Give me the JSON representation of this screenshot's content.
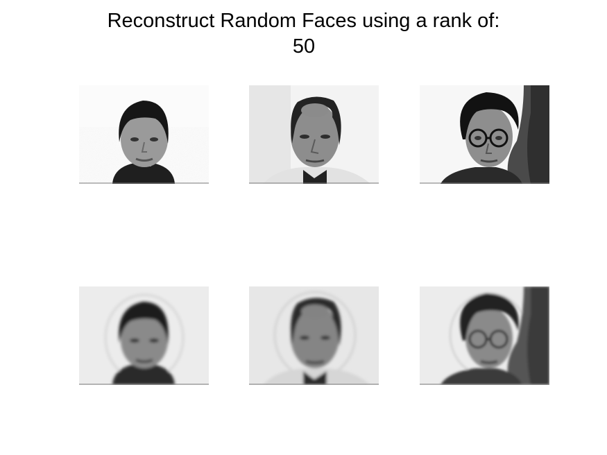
{
  "figure": {
    "title_line_1": "Reconstruct Random Faces using a rank of:",
    "title_line_2": "50",
    "background_color": "#ffffff",
    "title_color": "#000000"
  },
  "rows": [
    {
      "row_name": "original-faces",
      "panels": [
        {
          "name": "face-1",
          "background": "light",
          "hair": "dark",
          "glasses": false,
          "shadow": false
        },
        {
          "name": "face-2",
          "background": "light",
          "hair": "balding",
          "glasses": false,
          "shadow": false
        },
        {
          "name": "face-3",
          "background": "light",
          "hair": "dark",
          "glasses": true,
          "shadow": true
        }
      ]
    },
    {
      "row_name": "reconstructed-faces",
      "panels": [
        {
          "name": "face-1-reconstructed",
          "background": "light-gray",
          "hair": "dark",
          "glasses": false,
          "shadow": false,
          "blurred": true
        },
        {
          "name": "face-2-reconstructed",
          "background": "light-gray",
          "hair": "balding",
          "glasses": false,
          "shadow": false,
          "blurred": true
        },
        {
          "name": "face-3-reconstructed",
          "background": "light-gray",
          "hair": "dark",
          "glasses": true,
          "shadow": true,
          "blurred": true
        }
      ]
    }
  ]
}
